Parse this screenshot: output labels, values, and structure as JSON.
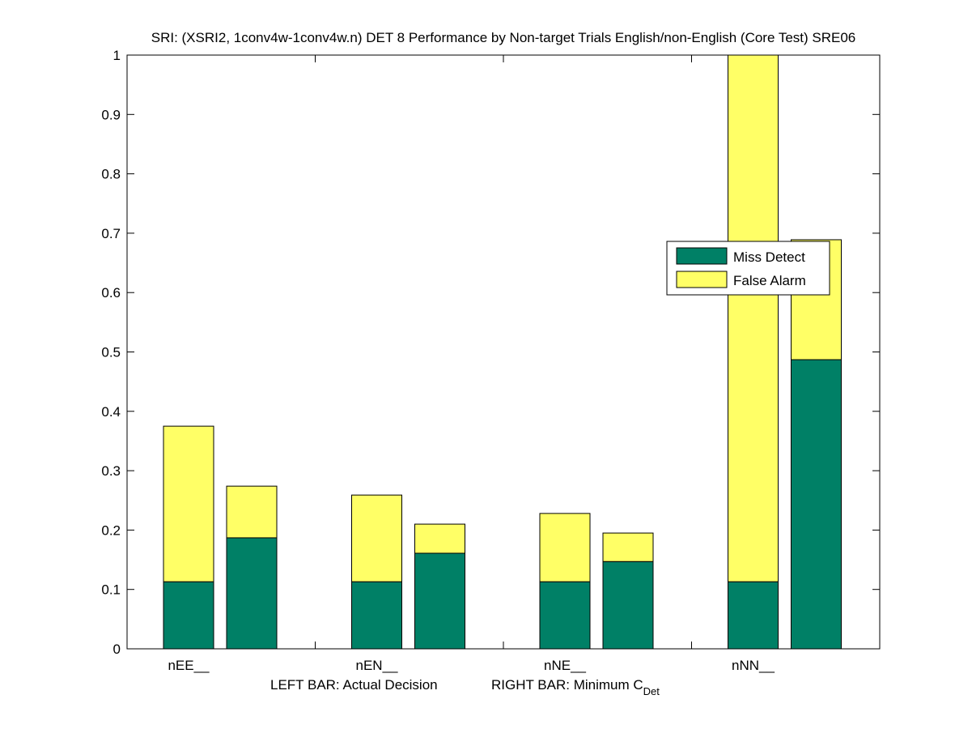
{
  "chart_data": {
    "type": "bar",
    "stacked": true,
    "title": "SRI: (XSRI2, 1conv4w-1conv4w.n) DET 8 Performance by Non-target Trials English/non-English (Core Test) SRE06",
    "xlabel": {
      "left_part": "LEFT BAR: Actual Decision",
      "right_part": "RIGHT BAR: Minimum C",
      "right_subscript": "Det"
    },
    "ylabel": "",
    "ylim": [
      0,
      1
    ],
    "yticks": [
      "0",
      "0.1",
      "0.2",
      "0.3",
      "0.4",
      "0.5",
      "0.6",
      "0.7",
      "0.8",
      "0.9",
      "1"
    ],
    "grid": false,
    "legend_position": "right-middle",
    "categories": [
      "nEE__",
      "nEN__",
      "nNE__",
      "nNN__"
    ],
    "bar_roles": [
      "Actual Decision",
      "Minimum C_Det"
    ],
    "series": [
      {
        "name": "Miss Detect",
        "color": "#008066",
        "actual": [
          0.113,
          0.113,
          0.113,
          0.113
        ],
        "minimum": [
          0.187,
          0.161,
          0.147,
          0.487
        ]
      },
      {
        "name": "False Alarm",
        "color": "#ffff66",
        "actual": [
          0.262,
          0.146,
          0.115,
          0.887
        ],
        "minimum": [
          0.087,
          0.049,
          0.048,
          0.202
        ]
      }
    ],
    "totals": {
      "actual": [
        0.375,
        0.259,
        0.228,
        1.0
      ],
      "minimum": [
        0.274,
        0.21,
        0.195,
        0.689
      ]
    }
  }
}
